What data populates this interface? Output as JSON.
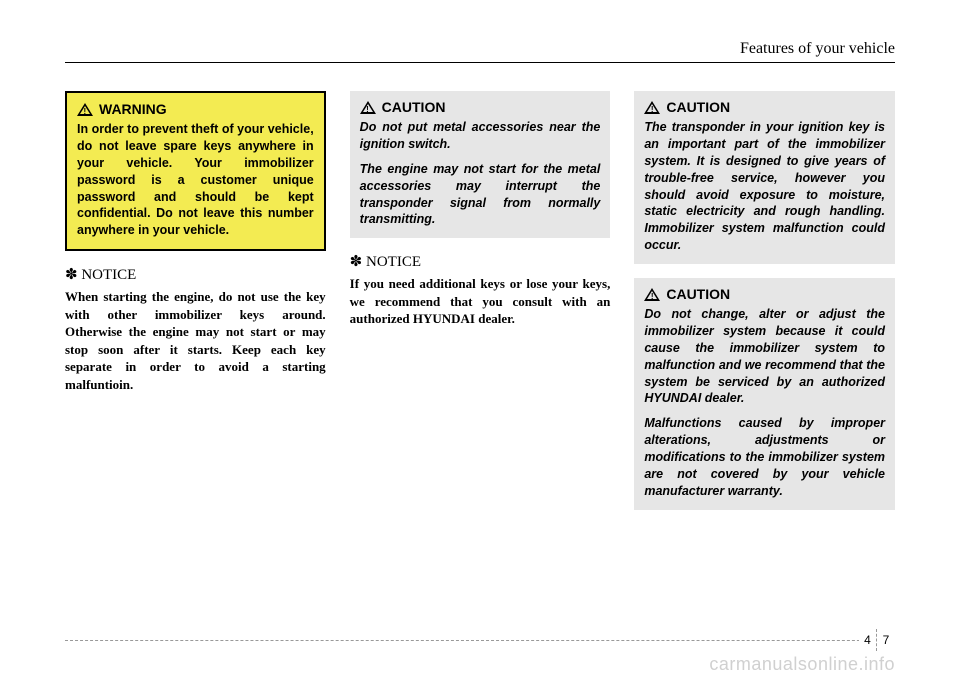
{
  "header": {
    "title": "Features of your vehicle"
  },
  "col1": {
    "warning": {
      "label": "WARNING",
      "text": "In order to prevent theft of your vehicle, do not leave spare keys anywhere in your vehicle. Your immobilizer password is a customer unique password and should be kept confidential. Do not leave this number anywhere in your vehicle."
    },
    "notice": {
      "label": "✽ NOTICE",
      "text": "When starting the engine, do not use the key with other immobilizer keys around. Otherwise the engine may not start or may stop soon after it starts. Keep each key separate in order to avoid a starting malfuntioin."
    }
  },
  "col2": {
    "caution": {
      "label": "CAUTION",
      "p1": "Do not put metal accessories near the ignition switch.",
      "p2": "The engine may not start for the metal accessories may interrupt the transponder signal from normally transmitting."
    },
    "notice": {
      "label": "✽ NOTICE",
      "text": "If you need additional keys or lose your keys, we recommend that you consult with an authorized HYUNDAI dealer."
    }
  },
  "col3": {
    "caution1": {
      "label": "CAUTION",
      "text": "The transponder in your ignition key is an important part of the immobilizer system. It is designed to give years of trouble-free service, however you should avoid exposure to moisture, static electricity and rough handling. Immobilizer system malfunction could occur."
    },
    "caution2": {
      "label": "CAUTION",
      "p1": "Do not change, alter or adjust the immobilizer system because it could cause the immobilizer system to malfunction and we recommend that the system be serviced by an authorized HYUNDAI dealer.",
      "p2": "Malfunctions caused by improper alterations, adjustments or modifications to the immobilizer system are not covered by your vehicle manufacturer warranty."
    }
  },
  "pagenum": {
    "section": "4",
    "page": "7"
  },
  "watermark": "carmanualsonline.info"
}
